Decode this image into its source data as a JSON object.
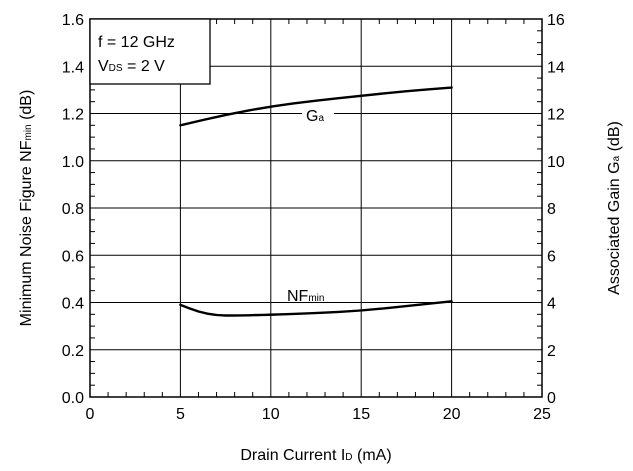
{
  "chart_data": {
    "type": "line",
    "left_axis": {
      "title": "Minimum Noise Figure",
      "symbol": "NF",
      "symbol_sub": "min",
      "unit": "(dB)",
      "range": [
        0,
        1.6
      ],
      "ticks": [
        "0.0",
        "0.2",
        "0.4",
        "0.6",
        "0.8",
        "1.0",
        "1.2",
        "1.4",
        "1.6"
      ]
    },
    "right_axis": {
      "title": "Associated Gain",
      "symbol": "G",
      "symbol_sub": "a",
      "unit": "(dB)",
      "range": [
        0,
        16
      ],
      "ticks": [
        "0",
        "2",
        "4",
        "6",
        "8",
        "10",
        "12",
        "14",
        "16"
      ]
    },
    "x_axis": {
      "title": "Drain Current",
      "symbol": "I",
      "symbol_sub": "D",
      "unit": "(mA)",
      "range": [
        0,
        25
      ],
      "ticks": [
        "0",
        "5",
        "10",
        "15",
        "20",
        "25"
      ]
    },
    "conditions": {
      "line1": "f = 12 GHz",
      "line2_prefix": "V",
      "line2_sub": "DS",
      "line2_suffix": " = 2 V"
    },
    "grid": true,
    "series": [
      {
        "name_main": "G",
        "name_sub": "a",
        "axis": "right",
        "points": [
          [
            5,
            11.5
          ],
          [
            7.5,
            11.95
          ],
          [
            10,
            12.3
          ],
          [
            12.5,
            12.55
          ],
          [
            15,
            12.75
          ],
          [
            17.5,
            12.95
          ],
          [
            20,
            13.1
          ]
        ]
      },
      {
        "name_main": "NF",
        "name_sub": "min",
        "axis": "left",
        "points": [
          [
            5,
            0.39
          ],
          [
            6,
            0.36
          ],
          [
            7,
            0.345
          ],
          [
            8,
            0.345
          ],
          [
            10,
            0.348
          ],
          [
            12.5,
            0.355
          ],
          [
            15,
            0.365
          ],
          [
            17.5,
            0.385
          ],
          [
            20,
            0.405
          ]
        ]
      }
    ]
  }
}
